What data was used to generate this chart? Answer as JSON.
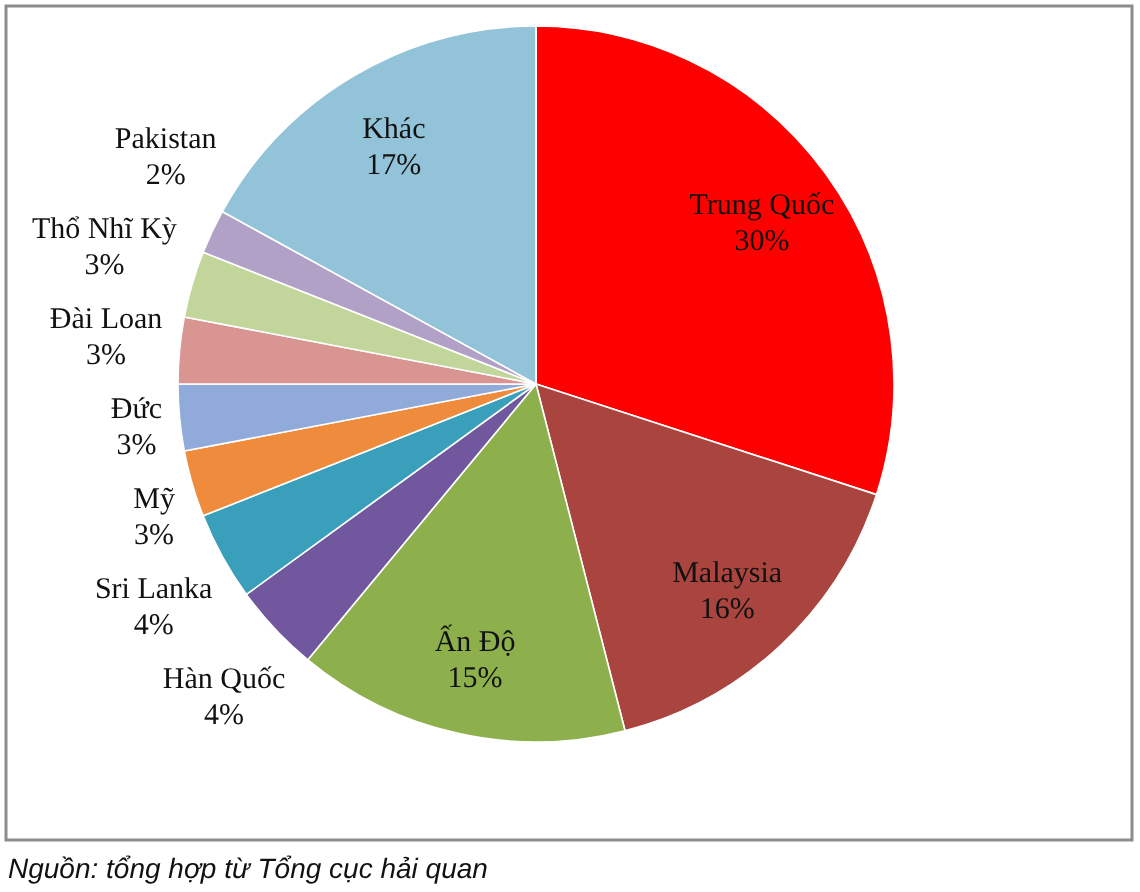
{
  "chart_data": {
    "type": "pie",
    "categories": [
      "Trung Quốc",
      "Malaysia",
      "Ấn Độ",
      "Hàn Quốc",
      "Sri Lanka",
      "Mỹ",
      "Đức",
      "Đài Loan",
      "Thổ Nhĩ Kỳ",
      "Pakistan",
      "Khác"
    ],
    "values": [
      30,
      16,
      15,
      4,
      4,
      3,
      3,
      3,
      3,
      2,
      17
    ],
    "value_labels": [
      "30%",
      "16%",
      "15%",
      "4%",
      "4%",
      "3%",
      "3%",
      "3%",
      "3%",
      "2%",
      "17%"
    ],
    "colors": [
      "#ff0000",
      "#a9443f",
      "#8eb04c",
      "#71589e",
      "#3a9fba",
      "#ef8b3c",
      "#90abd9",
      "#d89592",
      "#c2d59a",
      "#b2a1c6",
      "#93c3d8"
    ],
    "annotations": [
      "Nguồn: tổng hợp từ Tổng cục hải quan"
    ]
  }
}
